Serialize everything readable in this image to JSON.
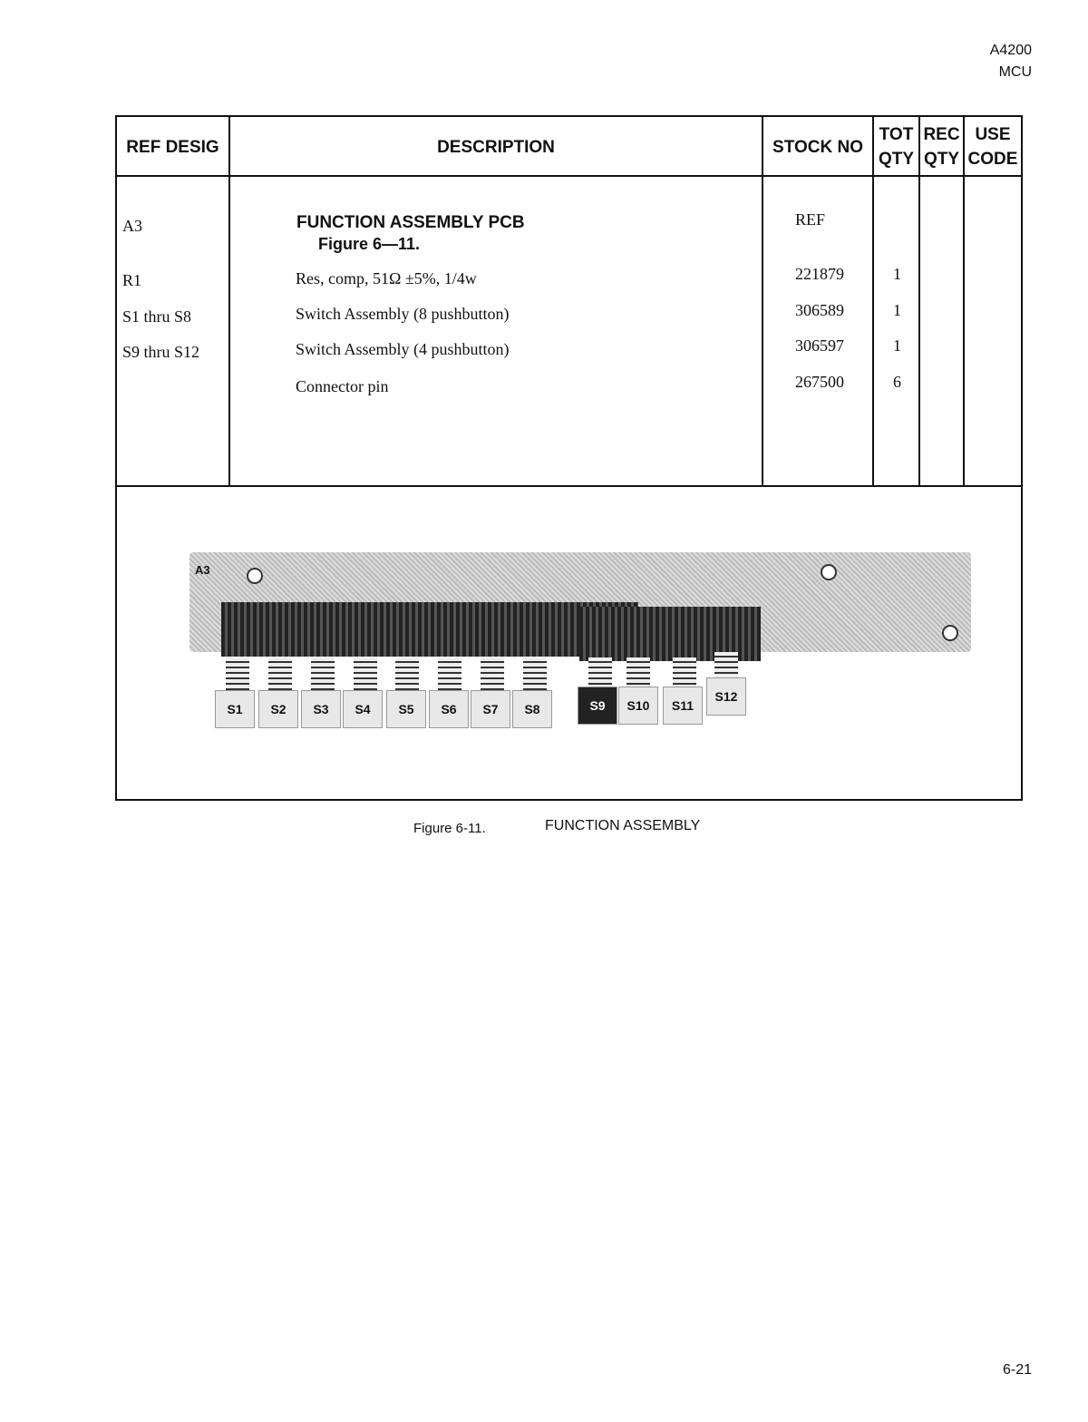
{
  "header": {
    "doc_number": "A4200",
    "model": "MCU"
  },
  "table": {
    "columns": [
      "REF DESIG",
      "DESCRIPTION",
      "STOCK NO",
      "TOT\nQTY",
      "REC\nQTY",
      "USE\nCODE"
    ],
    "rows": [
      {
        "ref": "A3",
        "desc": "FUNCTION ASSEMBLY PCB",
        "desc_sub": "Figure 6—11.",
        "stock": "REF",
        "tot": ""
      },
      {
        "ref": "R1",
        "desc": "Res, comp, 51Ω ±5%, 1/4w",
        "stock": "221879",
        "tot": "1"
      },
      {
        "ref": "S1 thru S8",
        "desc": "Switch Assembly (8 pushbutton)",
        "stock": "306589",
        "tot": "1"
      },
      {
        "ref": "S9 thru S12",
        "desc": "Switch Assembly (4 pushbutton)",
        "stock": "306597",
        "tot": "1"
      },
      {
        "ref": "",
        "desc": "Connector pin",
        "stock": "267500",
        "tot": "6"
      }
    ]
  },
  "figure": {
    "board_label": "A3",
    "switches": [
      "S1",
      "S2",
      "S3",
      "S4",
      "S5",
      "S6",
      "S7",
      "S8",
      "S9",
      "S10",
      "S11",
      "S12"
    ],
    "caption_number": "Figure 6-11.",
    "caption_title": "FUNCTION ASSEMBLY"
  },
  "footer": {
    "page": "6-21"
  }
}
